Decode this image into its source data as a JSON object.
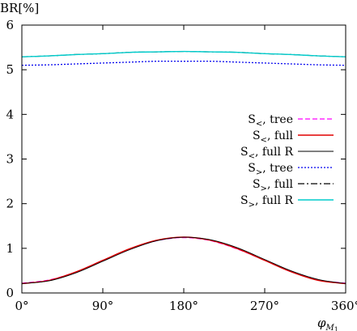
{
  "chart_data": {
    "type": "line",
    "ylabel": "BR[%]",
    "xlabel": "φ_{M1}",
    "xlabel_main": "φ",
    "xlabel_sub": "M",
    "xlabel_subsub": "1",
    "xlim": [
      0,
      360
    ],
    "ylim": [
      0,
      6
    ],
    "xticks": [
      0,
      90,
      180,
      270,
      360
    ],
    "xtick_labels": [
      "0°",
      "90°",
      "180°",
      "270°",
      "360°"
    ],
    "yticks": [
      0,
      1,
      2,
      3,
      4,
      5,
      6
    ],
    "ytick_labels": [
      "0",
      "1",
      "2",
      "3",
      "4",
      "5",
      "6"
    ],
    "grid": false,
    "legend_position": "right",
    "x": [
      0,
      30,
      60,
      90,
      120,
      150,
      180,
      210,
      240,
      270,
      300,
      330,
      360
    ],
    "series": [
      {
        "name": "S<, tree",
        "label_main": "S",
        "label_sub": "<",
        "label_rest": ", tree",
        "color": "#ff00ff",
        "dash": "6,3",
        "width": 1.2,
        "values": [
          0.22,
          0.29,
          0.47,
          0.73,
          0.98,
          1.17,
          1.24,
          1.17,
          0.98,
          0.73,
          0.47,
          0.29,
          0.22
        ]
      },
      {
        "name": "S<, full",
        "label_main": "S",
        "label_sub": "<",
        "label_rest": ", full",
        "color": "#e00000",
        "dash": "",
        "width": 1.5,
        "values": [
          0.21,
          0.28,
          0.47,
          0.73,
          0.99,
          1.18,
          1.25,
          1.18,
          0.99,
          0.73,
          0.47,
          0.28,
          0.21
        ]
      },
      {
        "name": "S<, full R",
        "label_main": "S",
        "label_sub": "<",
        "label_rest": ", full R",
        "color": "#000000",
        "dash": "",
        "width": 0.9,
        "values": [
          0.21,
          0.27,
          0.45,
          0.71,
          0.97,
          1.17,
          1.25,
          1.19,
          1.01,
          0.75,
          0.49,
          0.3,
          0.21
        ]
      },
      {
        "name": "S>, tree",
        "label_main": "S",
        "label_sub": ">",
        "label_rest": ", tree",
        "color": "#0000ee",
        "dash": "2,2",
        "width": 1.3,
        "values": [
          5.1,
          5.11,
          5.13,
          5.15,
          5.17,
          5.19,
          5.19,
          5.19,
          5.17,
          5.15,
          5.13,
          5.11,
          5.1
        ]
      },
      {
        "name": "S>, full",
        "label_main": "S",
        "label_sub": ">",
        "label_rest": ", full",
        "color": "#000000",
        "dash": "8,3,2,3",
        "width": 1.2,
        "values": [
          5.29,
          5.31,
          5.34,
          5.36,
          5.39,
          5.4,
          5.41,
          5.4,
          5.39,
          5.36,
          5.34,
          5.31,
          5.29
        ]
      },
      {
        "name": "S>, full R",
        "label_main": "S",
        "label_sub": ">",
        "label_rest": ", full R",
        "color": "#00cccc",
        "dash": "",
        "width": 1.4,
        "values": [
          5.29,
          5.31,
          5.34,
          5.36,
          5.39,
          5.4,
          5.41,
          5.4,
          5.39,
          5.36,
          5.34,
          5.31,
          5.29
        ]
      }
    ]
  }
}
